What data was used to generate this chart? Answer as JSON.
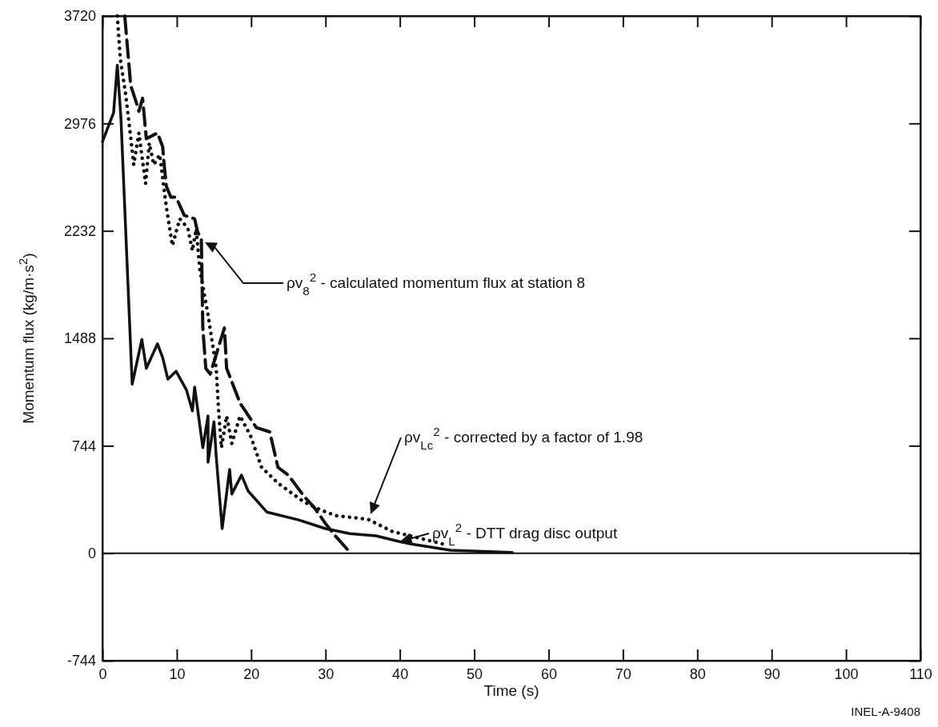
{
  "chart_data": {
    "type": "line",
    "xlabel": "Time (s)",
    "ylabel": "Momentum flux (kg/m·s$^{2}$)",
    "xlim": [
      0,
      110
    ],
    "xticks": [
      0,
      10,
      20,
      30,
      40,
      50,
      60,
      70,
      80,
      90,
      100,
      110
    ],
    "ylim": [
      -744,
      3720
    ],
    "yticks": [
      -744,
      0,
      744,
      1488,
      2232,
      2976,
      3720
    ],
    "grid": false,
    "ref_lines": [
      {
        "axis": "y",
        "value": 0
      }
    ],
    "series": [
      {
        "color": "#111111",
        "line_style": "solid",
        "x": [
          0,
          1.5,
          2,
          2.5,
          4,
          5.3,
          5.9,
          7.4,
          8.1,
          8.8,
          9.9,
          11.3,
          12.1,
          12.4,
          13.5,
          14.2,
          14.2,
          15,
          15.3,
          16.1,
          17.1,
          17.4,
          18.7,
          19.6,
          22.1,
          26.4,
          30,
          33.3,
          36.8,
          40,
          41.4,
          46.8,
          55.1
        ],
        "values": [
          2850,
          3050,
          3380,
          3000,
          1170,
          1480,
          1280,
          1450,
          1355,
          1205,
          1260,
          1130,
          985,
          1150,
          730,
          950,
          630,
          910,
          670,
          170,
          580,
          410,
          540,
          430,
          285,
          230,
          170,
          135,
          120,
          80,
          65,
          20,
          5
        ]
      },
      {
        "color": "#111111",
        "line_style": "dashed",
        "x": [
          3,
          3.8,
          4.5,
          4.9,
          5.4,
          5.9,
          7.4,
          8.1,
          8.3,
          8.6,
          9.2,
          9.9,
          11,
          12.4,
          12.8,
          13.3,
          13.5,
          13.9,
          14.5,
          16.4,
          16.7,
          18.5,
          20.7,
          22.5,
          23.6,
          25,
          27.1,
          28.5,
          30,
          31.4,
          33.3
        ],
        "values": [
          3720,
          3240,
          3130,
          3060,
          3150,
          2870,
          2910,
          2815,
          2690,
          2540,
          2465,
          2465,
          2340,
          2315,
          2225,
          2170,
          1560,
          1280,
          1240,
          1560,
          1280,
          1040,
          870,
          840,
          595,
          540,
          395,
          315,
          205,
          115,
          5
        ]
      },
      {
        "color": "#111111",
        "line_style": "dotted",
        "x": [
          2,
          2.4,
          3.1,
          3.7,
          4.2,
          4.9,
          5.8,
          6.3,
          6.9,
          7.7,
          8.6,
          9.4,
          10.4,
          11,
          11.5,
          12.1,
          12.6,
          13.1,
          14.2,
          15.3,
          15.6,
          16,
          16.7,
          17.4,
          18.5,
          19.9,
          21.4,
          23.6,
          27.1,
          29.3,
          31.4,
          35.7,
          39,
          45.7
        ],
        "values": [
          3720,
          3425,
          3185,
          2925,
          2690,
          2910,
          2560,
          2840,
          2690,
          2760,
          2395,
          2130,
          2315,
          2280,
          2245,
          2095,
          2245,
          1965,
          1650,
          1280,
          1005,
          730,
          950,
          760,
          950,
          815,
          595,
          485,
          355,
          300,
          260,
          235,
          150,
          65
        ]
      }
    ],
    "annotations": [
      "ρv$_{8}$$^{2}$ - calculated momentum flux at station 8",
      "ρv$_{Lc}$$^{2}$ - corrected by a factor of 1.98",
      "ρv$_{L}$$^{2}$ - DTT drag disc output",
      "INEL-A-9408"
    ]
  }
}
